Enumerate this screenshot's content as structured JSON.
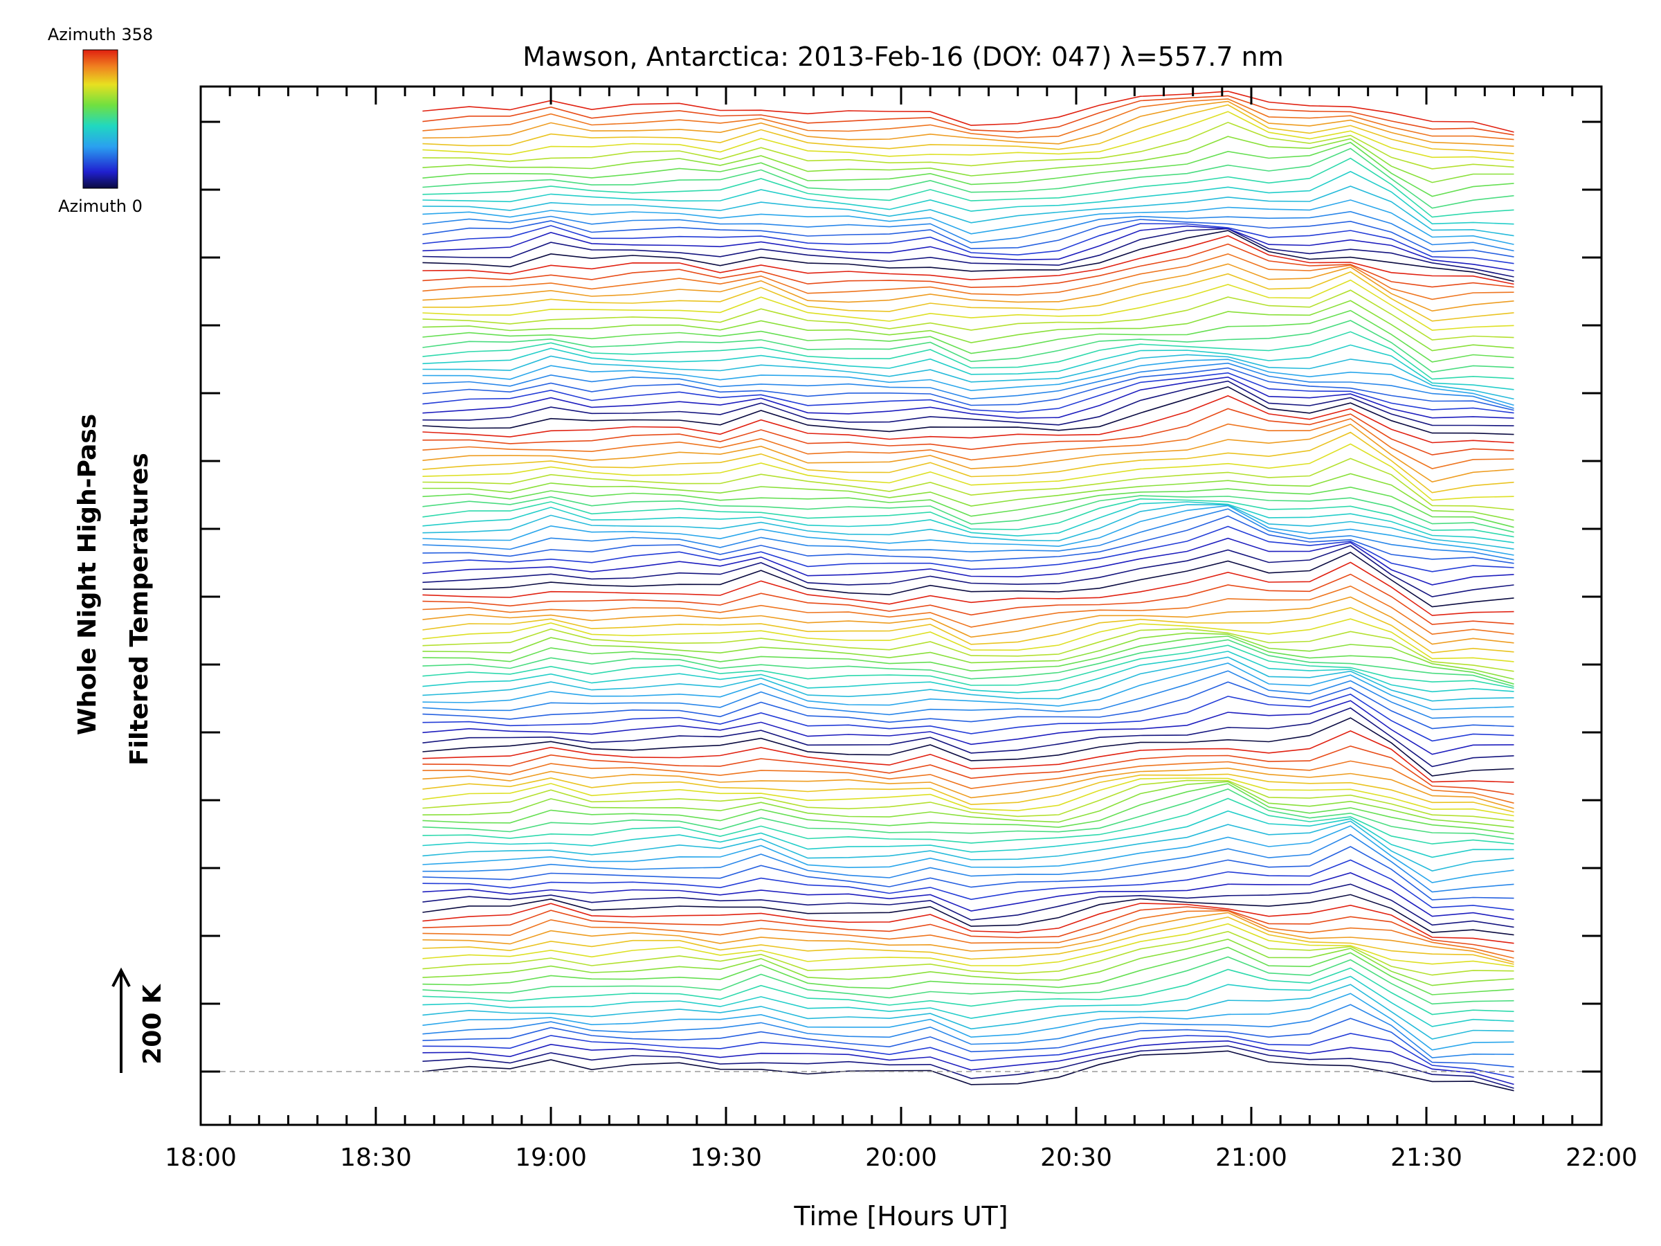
{
  "chart_data": {
    "type": "line",
    "title": "Mawson, Antarctica: 2013-Feb-16 (DOY: 047) λ=557.7 nm",
    "xlabel": "Time [Hours UT]",
    "ylabel_line1": "Whole Night High-Pass",
    "ylabel_line2": "Filtered Temperatures",
    "scale_bar_label": "200 K",
    "colorbar_top_label": "Azimuth 358",
    "colorbar_bottom_label": "Azimuth 0",
    "xlim": [
      "18:00",
      "22:00"
    ],
    "x_tick_labels": [
      "18:00",
      "18:30",
      "19:00",
      "19:30",
      "20:00",
      "20:30",
      "21:00",
      "21:30",
      "22:00"
    ],
    "legend": "colorbar top-left",
    "grid": false,
    "series_count": 120,
    "azimuth_range": [
      0,
      358
    ],
    "x": [
      "18:38",
      "18:46",
      "18:53",
      "19:00",
      "19:07",
      "19:14",
      "19:22",
      "19:29",
      "19:36",
      "19:44",
      "19:51",
      "19:58",
      "20:05",
      "20:12",
      "20:20",
      "20:27",
      "20:34",
      "20:41",
      "20:49",
      "20:56",
      "21:03",
      "21:10",
      "21:17",
      "21:24",
      "21:31",
      "21:38",
      "21:45"
    ]
  }
}
